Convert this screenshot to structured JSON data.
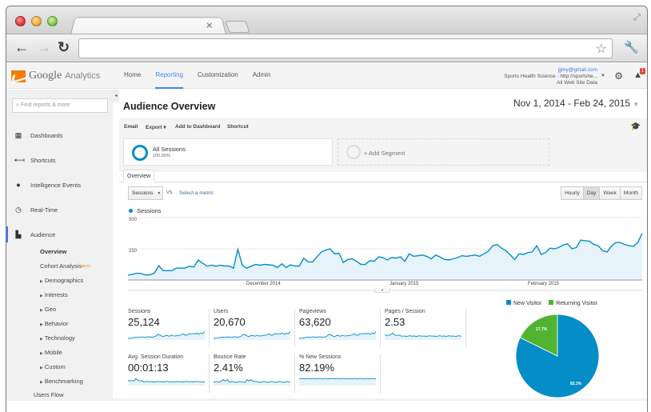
{
  "browser": {
    "tab_close_glyph": "×",
    "fullscreen_glyph": "⤢",
    "back_glyph": "←",
    "forward_glyph": "→",
    "reload_glyph": "↻",
    "address": "",
    "star_glyph": "☆",
    "wrench_glyph": "🔧"
  },
  "header": {
    "logo_google": "Google",
    "logo_analytics": "Analytics",
    "nav": [
      {
        "label": "Home",
        "active": false
      },
      {
        "label": "Reporting",
        "active": true
      },
      {
        "label": "Customization",
        "active": false
      },
      {
        "label": "Admin",
        "active": false
      }
    ],
    "account": {
      "email": "jjjmy@gmail.com",
      "property": "Sports Health Science - http://sportshe...",
      "view": "All Web Site Data"
    },
    "notification_count": "1",
    "gear_glyph": "⚙",
    "bell_glyph": "🔔"
  },
  "sidebar": {
    "collapse_glyph": "◂",
    "search_placeholder": "Find reports & more",
    "search_icon": "🔍",
    "items": [
      {
        "label": "Dashboards",
        "icon": "▦"
      },
      {
        "label": "Shortcuts",
        "icon": "⟻"
      },
      {
        "label": "Intelligence Events",
        "icon": "●"
      },
      {
        "label": "Real-Time",
        "icon": "◷"
      },
      {
        "label": "Audience",
        "icon": "👥"
      }
    ],
    "audience_sub": [
      {
        "label": "Overview",
        "expandable": false,
        "selected": true
      },
      {
        "label": "Cohort Analysis",
        "badge": "BETA",
        "expandable": false
      },
      {
        "label": "Demographics",
        "expandable": true
      },
      {
        "label": "Interests",
        "expandable": true
      },
      {
        "label": "Geo",
        "expandable": true
      },
      {
        "label": "Behavior",
        "expandable": true
      },
      {
        "label": "Technology",
        "expandable": true
      },
      {
        "label": "Mobile",
        "expandable": true
      },
      {
        "label": "Custom",
        "expandable": true
      },
      {
        "label": "Benchmarking",
        "expandable": true
      },
      {
        "label": "Users Flow",
        "expandable": false
      }
    ]
  },
  "main": {
    "title": "Audience Overview",
    "date_range": "Nov 1, 2014 - Feb 24, 2015",
    "actions": [
      "Email",
      "Export ▾",
      "Add to Dashboard",
      "Shortcut"
    ],
    "segments": {
      "active": {
        "name": "All Sessions",
        "pct": "100.00%"
      },
      "add_label": "+ Add Segment"
    },
    "tab": "Overview",
    "metric_select": "Sessions",
    "vs_label": "VS.",
    "select_metric_link": "Select a metric",
    "granularity": [
      {
        "label": "Hourly",
        "active": false
      },
      {
        "label": "Day",
        "active": true
      },
      {
        "label": "Week",
        "active": false
      },
      {
        "label": "Month",
        "active": false
      }
    ],
    "scorecards": [
      {
        "label": "Sessions",
        "value": "25,124"
      },
      {
        "label": "Users",
        "value": "20,670"
      },
      {
        "label": "Pageviews",
        "value": "63,620"
      },
      {
        "label": "Pages / Session",
        "value": "2.53"
      },
      {
        "label": "Avg. Session Duration",
        "value": "00:01:13"
      },
      {
        "label": "Bounce Rate",
        "value": "2.41%"
      },
      {
        "label": "% New Sessions",
        "value": "82.19%"
      }
    ]
  },
  "colors": {
    "series": "#058dc7",
    "area": "#e6f3fa",
    "new_visitor": "#058dc7",
    "returning_visitor": "#50b432",
    "accent": "#4285f4"
  },
  "chart_data": [
    {
      "type": "area",
      "title": "Sessions",
      "legend": [
        "Sessions"
      ],
      "xlabel": "",
      "ylabel": "",
      "yticks": [
        250,
        500
      ],
      "ylim": [
        0,
        550
      ],
      "grid": true,
      "x_tick_labels": [
        "December 2014",
        "January 2015",
        "February 2015"
      ],
      "x_range": [
        "2014-11-01",
        "2015-02-24"
      ],
      "values": [
        40,
        45,
        55,
        52,
        40,
        42,
        55,
        115,
        75,
        75,
        75,
        95,
        95,
        95,
        110,
        105,
        160,
        135,
        110,
        120,
        110,
        118,
        112,
        112,
        95,
        245,
        120,
        95,
        110,
        125,
        118,
        125,
        122,
        118,
        100,
        130,
        100,
        122,
        112,
        112,
        175,
        145,
        145,
        185,
        225,
        240,
        250,
        210,
        215,
        140,
        165,
        170,
        150,
        125,
        125,
        155,
        150,
        185,
        180,
        160,
        180,
        175,
        185,
        150,
        210,
        190,
        195,
        200,
        190,
        170,
        200,
        185,
        165,
        160,
        170,
        180,
        195,
        190,
        195,
        200,
        190,
        210,
        230,
        275,
        285,
        255,
        235,
        200,
        165,
        210,
        205,
        220,
        225,
        275,
        205,
        220,
        255,
        250,
        260,
        280,
        290,
        250,
        260,
        320,
        315,
        310,
        285,
        275,
        235,
        225,
        270,
        300,
        300,
        285,
        275,
        270,
        300,
        375
      ],
      "values_note": "Daily sessions estimated from pixel positions (Nov 1 2014 – Feb 24 2015)"
    },
    {
      "type": "pie",
      "title": "",
      "legend": [
        "New Visitor",
        "Returning Visitor"
      ],
      "categories": [
        "New Visitor",
        "Returning Visitor"
      ],
      "values": [
        82.3,
        17.7
      ],
      "labels": [
        "82.3%",
        "17.7%"
      ],
      "legend_position": "top"
    }
  ]
}
